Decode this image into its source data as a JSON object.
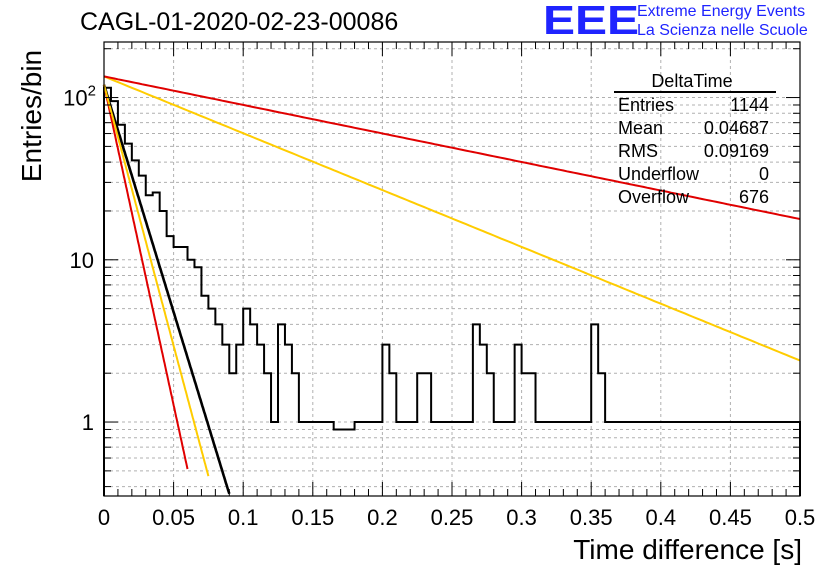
{
  "header": {
    "title": "CAGL-01-2020-02-23-00086",
    "logo_text": "EEE",
    "brand_line1": "Extreme Energy Events",
    "brand_line2": "La Scienza nelle Scuole"
  },
  "colors": {
    "logo": "#1f24ff",
    "hist": "#000000",
    "fit_black": "#000000",
    "fit_red": "#e00000",
    "fit_yellow": "#ffcc00",
    "grid": "#b0b0b0"
  },
  "chart_data": {
    "type": "line",
    "title": "CAGL-01-2020-02-23-00086",
    "xlabel": "Time difference [s]",
    "ylabel": "Entries/bin",
    "xlim": [
      0,
      0.5
    ],
    "ylim": [
      0.35,
      220
    ],
    "yscale": "log",
    "grid": true,
    "x_ticks": [
      "0",
      "0.05",
      "0.1",
      "0.15",
      "0.2",
      "0.25",
      "0.3",
      "0.35",
      "0.4",
      "0.45",
      "0.5"
    ],
    "y_ticks": [
      "1",
      "10",
      "10^2"
    ],
    "stats_box": {
      "title": "DeltaTime",
      "rows": [
        {
          "label": "Entries",
          "value": "1144"
        },
        {
          "label": "Mean",
          "value": "0.04687"
        },
        {
          "label": "RMS",
          "value": "0.09169"
        },
        {
          "label": "Underflow",
          "value": "0"
        },
        {
          "label": "Overflow",
          "value": "676"
        }
      ]
    },
    "histogram": {
      "bin_width": 0.005,
      "counts": [
        115,
        95,
        68,
        52,
        41,
        33,
        25,
        26,
        20,
        14,
        12,
        12,
        10,
        9,
        6,
        5,
        4,
        3,
        2,
        3,
        5,
        4,
        3,
        2,
        1,
        4,
        3,
        2,
        1,
        1,
        1,
        1,
        1,
        0.9,
        0.9,
        0.9,
        1,
        1,
        1,
        1,
        3,
        2,
        1,
        1,
        1,
        2,
        2,
        1,
        1,
        1,
        1,
        1,
        1,
        4,
        3,
        2,
        1,
        1,
        1,
        3,
        2,
        2,
        1,
        1,
        1,
        1,
        1,
        1,
        1,
        1,
        4,
        2,
        1,
        1,
        1,
        1,
        1,
        1,
        1,
        1,
        1,
        1,
        1,
        1,
        1,
        1,
        1,
        1,
        1,
        1,
        1,
        1,
        1,
        1,
        1,
        1,
        1,
        1,
        1,
        1
      ]
    },
    "series": [
      {
        "color": "black",
        "A": 120,
        "tau": 0.0155,
        "xmax": 0.09
      },
      {
        "color": "red_steep",
        "A": 120,
        "tau": 0.011,
        "xmax": 0.06
      },
      {
        "color": "yellow_steep",
        "A": 120,
        "tau": 0.0135,
        "xmax": 0.075
      },
      {
        "color": "yellow_shallow",
        "A": 135,
        "tau": 0.124,
        "xmax": 0.5
      },
      {
        "color": "red_shallow",
        "A": 135,
        "tau": 0.247,
        "xmax": 0.5
      }
    ]
  }
}
